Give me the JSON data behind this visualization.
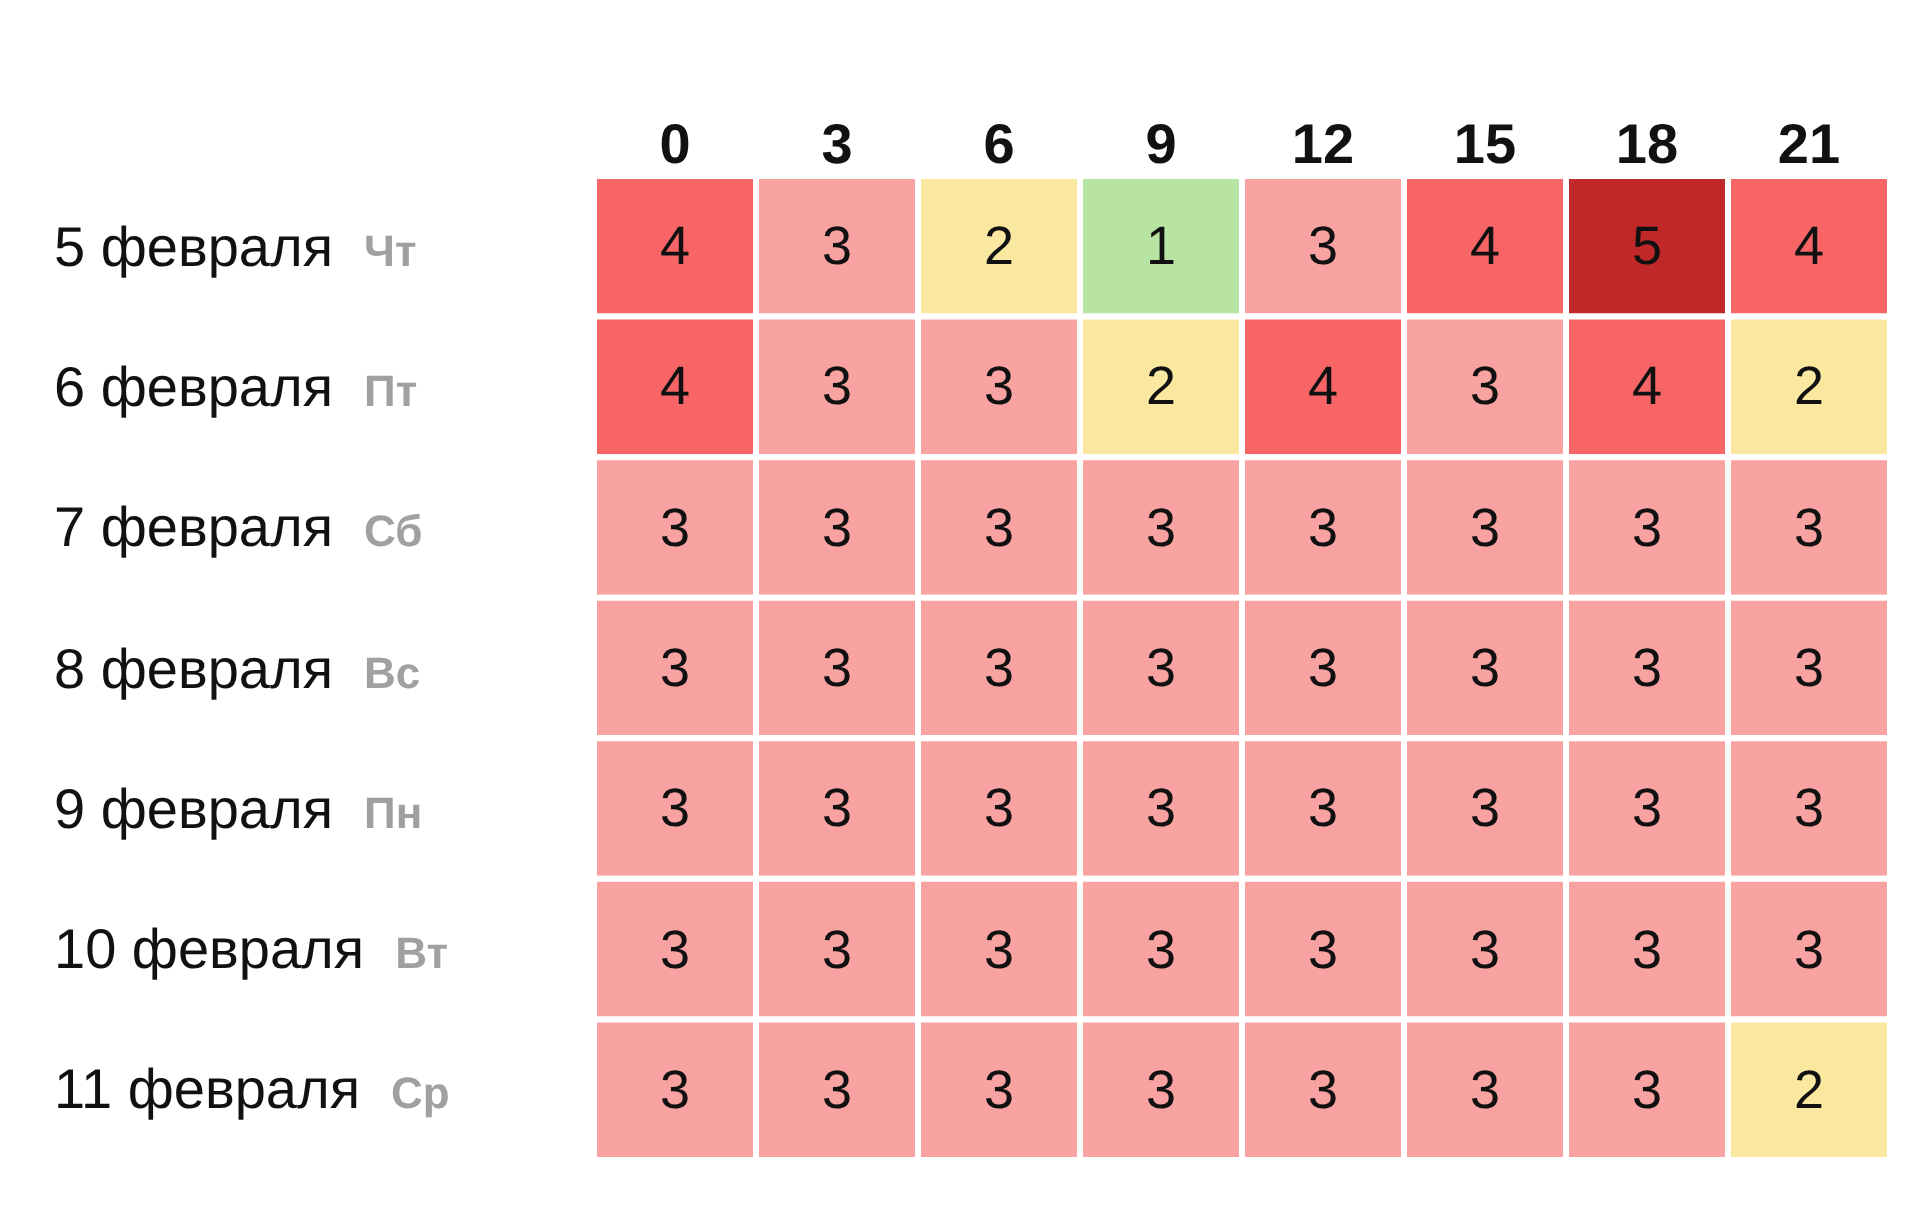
{
  "chart_data": {
    "type": "heatmap",
    "categories": [
      "0",
      "3",
      "6",
      "9",
      "12",
      "15",
      "18",
      "21"
    ],
    "y_categories": [
      "5 февраля",
      "6 февраля",
      "7 февраля",
      "8 февраля",
      "9 февраля",
      "10 февраля",
      "11 февраля"
    ],
    "y2_categories": [
      "Чт",
      "Пт",
      "Сб",
      "Вс",
      "Пн",
      "Вт",
      "Ср"
    ],
    "cells": [
      [
        4,
        3,
        2,
        1,
        3,
        4,
        5,
        4
      ],
      [
        4,
        3,
        3,
        2,
        4,
        3,
        4,
        2
      ],
      [
        3,
        3,
        3,
        3,
        3,
        3,
        3,
        3
      ],
      [
        3,
        3,
        3,
        3,
        3,
        3,
        3,
        3
      ],
      [
        3,
        3,
        3,
        3,
        3,
        3,
        3,
        3
      ],
      [
        3,
        3,
        3,
        3,
        3,
        3,
        3,
        3
      ],
      [
        3,
        3,
        3,
        3,
        3,
        3,
        3,
        2
      ]
    ],
    "colors": [
      "#b7e3a3",
      "#fbe8a0",
      "#f8a3a2",
      "#f76566",
      "#c0282a"
    ],
    "data_labels": true
  }
}
